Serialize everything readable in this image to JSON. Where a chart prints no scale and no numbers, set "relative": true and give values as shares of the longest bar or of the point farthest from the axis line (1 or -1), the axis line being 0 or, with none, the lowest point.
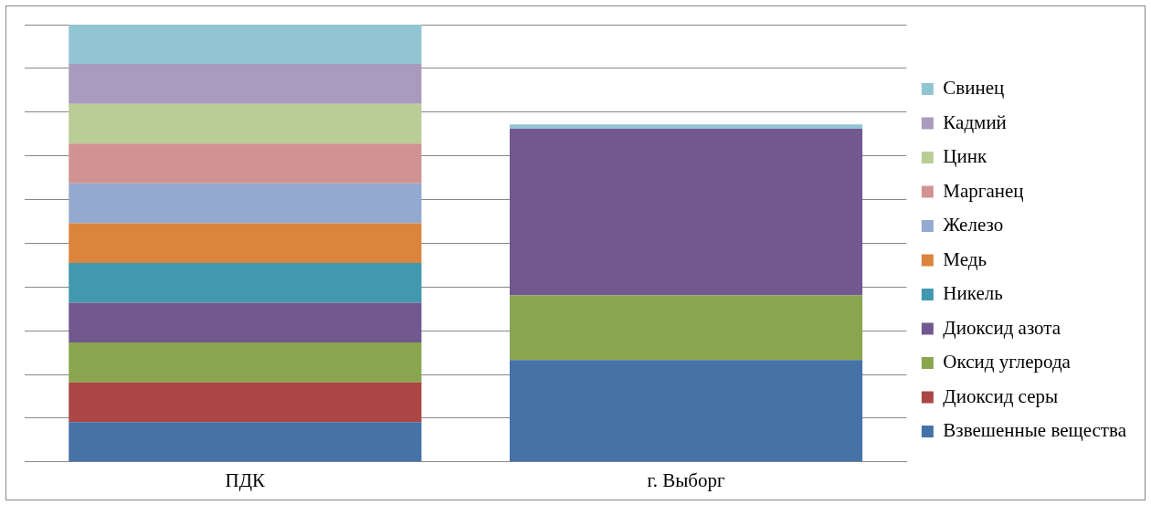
{
  "chart_data": {
    "type": "bar",
    "stacked": true,
    "relative": true,
    "grid": "y",
    "legend": "right",
    "categories": [
      "ПДК",
      "г. Выборг"
    ],
    "series": [
      {
        "name": "Взвешенные вещества",
        "color": "#4572a7",
        "values": [
          0.091,
          0.233
        ]
      },
      {
        "name": "Диоксид серы",
        "color": "#aa4643",
        "values": [
          0.091,
          0
        ]
      },
      {
        "name": "Оксид углерода",
        "color": "#89a54e",
        "values": [
          0.091,
          0.148
        ]
      },
      {
        "name": "Диоксид азота",
        "color": "#71588f",
        "values": [
          0.091,
          0.381
        ]
      },
      {
        "name": "Никель",
        "color": "#4198af",
        "values": [
          0.091,
          0
        ]
      },
      {
        "name": "Медь",
        "color": "#db843d",
        "values": [
          0.091,
          0
        ]
      },
      {
        "name": "Железо",
        "color": "#93a9cf",
        "values": [
          0.091,
          0
        ]
      },
      {
        "name": "Марганец",
        "color": "#d19392",
        "values": [
          0.091,
          0
        ]
      },
      {
        "name": "Цинк",
        "color": "#b9cd96",
        "values": [
          0.091,
          0
        ]
      },
      {
        "name": "Кадмий",
        "color": "#a99bbd",
        "values": [
          0.091,
          0
        ]
      },
      {
        "name": "Свинец",
        "color": "#92c5d3",
        "values": [
          0.09,
          0.01
        ]
      }
    ]
  }
}
